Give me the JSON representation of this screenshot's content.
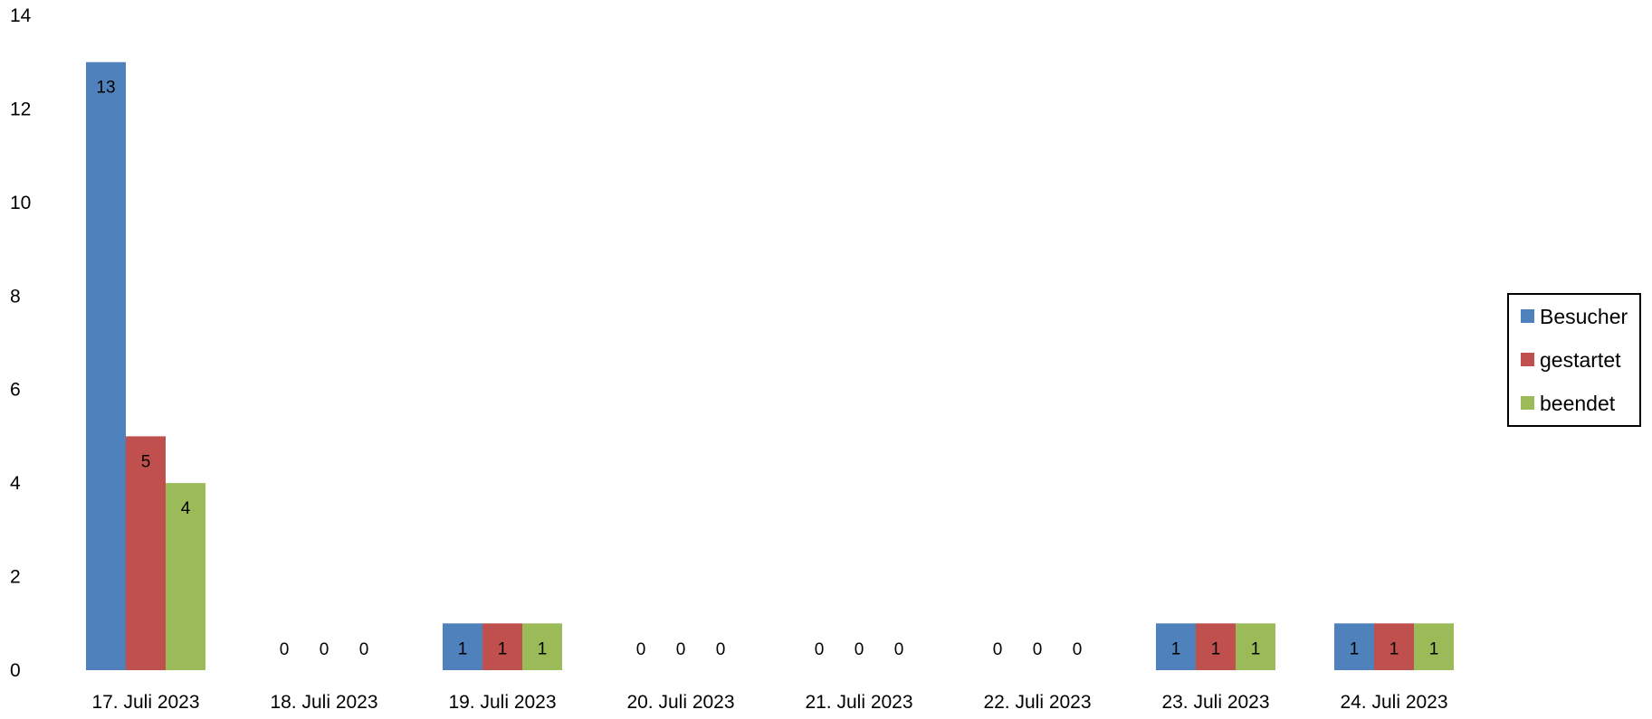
{
  "chart_data": {
    "type": "bar",
    "categories": [
      "17. Juli 2023",
      "18. Juli 2023",
      "19. Juli 2023",
      "20. Juli 2023",
      "21. Juli 2023",
      "22. Juli 2023",
      "23. Juli 2023",
      "24. Juli 2023"
    ],
    "series": [
      {
        "name": "Besucher",
        "color": "#4F81BD",
        "values": [
          13,
          0,
          1,
          0,
          0,
          0,
          1,
          1
        ]
      },
      {
        "name": "gestartet",
        "color": "#C0504D",
        "values": [
          5,
          0,
          1,
          0,
          0,
          0,
          1,
          1
        ]
      },
      {
        "name": "beendet",
        "color": "#9BBB59",
        "values": [
          4,
          0,
          1,
          0,
          0,
          0,
          1,
          1
        ]
      }
    ],
    "title": "",
    "xlabel": "",
    "ylabel": "",
    "ylim": [
      0,
      14
    ],
    "yticks": [
      0,
      2,
      4,
      6,
      8,
      10,
      12,
      14
    ],
    "grid": false,
    "legend": "right",
    "data_labels": true
  }
}
